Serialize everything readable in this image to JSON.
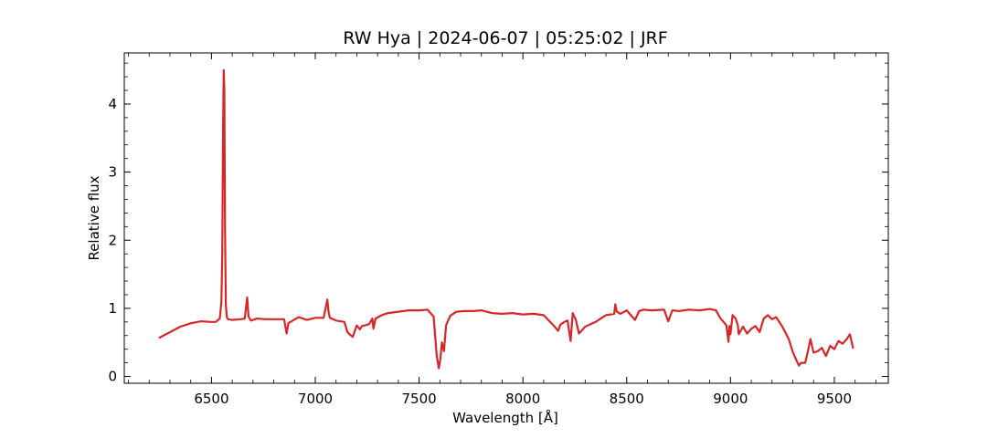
{
  "chart_data": {
    "type": "line",
    "title": "RW Hya | 2024-06-07 | 05:25:02 | JRF",
    "xlabel": "Wavelength [Å]",
    "ylabel": "Relative flux",
    "xlim": [
      6080,
      9760
    ],
    "ylim": [
      -0.1,
      4.75
    ],
    "x_ticks": [
      6500,
      7000,
      7500,
      8000,
      8500,
      9000,
      9500
    ],
    "x_minor_step": 100,
    "y_ticks": [
      0,
      1,
      2,
      3,
      4
    ],
    "y_minor_step": 0.2,
    "grid": false,
    "line_color": "#d62728",
    "series": [
      {
        "x": [
          6250,
          6300,
          6350,
          6400,
          6450,
          6500,
          6520,
          6540,
          6548,
          6552,
          6556,
          6559,
          6562,
          6565,
          6569,
          6574,
          6580,
          6600,
          6640,
          6660,
          6672,
          6678,
          6690,
          6720,
          6760,
          6800,
          6850,
          6862,
          6870,
          6880,
          6920,
          6960,
          7000,
          7040,
          7058,
          7064,
          7070,
          7100,
          7140,
          7155,
          7165,
          7180,
          7200,
          7215,
          7225,
          7240,
          7260,
          7275,
          7280,
          7290,
          7320,
          7350,
          7400,
          7450,
          7500,
          7540,
          7570,
          7585,
          7595,
          7602,
          7610,
          7620,
          7630,
          7650,
          7680,
          7720,
          7760,
          7800,
          7850,
          7900,
          7950,
          8000,
          8050,
          8100,
          8150,
          8170,
          8180,
          8200,
          8215,
          8230,
          8240,
          8255,
          8270,
          8300,
          8350,
          8400,
          8440,
          8445,
          8452,
          8470,
          8500,
          8540,
          8560,
          8580,
          8620,
          8680,
          8700,
          8720,
          8750,
          8800,
          8850,
          8900,
          8930,
          8950,
          8980,
          8990,
          8995,
          9000,
          9010,
          9025,
          9035,
          9040,
          9060,
          9080,
          9100,
          9120,
          9140,
          9160,
          9180,
          9200,
          9220,
          9250,
          9280,
          9300,
          9320,
          9330,
          9340,
          9360,
          9375,
          9385,
          9400,
          9420,
          9440,
          9460,
          9480,
          9500,
          9520,
          9540,
          9560,
          9575,
          9590
        ],
        "y": [
          0.57,
          0.65,
          0.73,
          0.78,
          0.81,
          0.8,
          0.8,
          0.85,
          1.1,
          1.8,
          3.6,
          4.5,
          4.2,
          2.2,
          1.05,
          0.87,
          0.84,
          0.83,
          0.84,
          0.85,
          1.16,
          0.88,
          0.82,
          0.85,
          0.84,
          0.84,
          0.84,
          0.63,
          0.78,
          0.8,
          0.87,
          0.83,
          0.86,
          0.86,
          1.13,
          0.95,
          0.86,
          0.82,
          0.8,
          0.65,
          0.62,
          0.58,
          0.75,
          0.69,
          0.74,
          0.75,
          0.77,
          0.85,
          0.7,
          0.85,
          0.9,
          0.93,
          0.95,
          0.97,
          0.97,
          0.98,
          0.88,
          0.3,
          0.12,
          0.25,
          0.5,
          0.37,
          0.75,
          0.89,
          0.95,
          0.96,
          0.96,
          0.97,
          0.93,
          0.92,
          0.93,
          0.91,
          0.92,
          0.9,
          0.74,
          0.67,
          0.76,
          0.8,
          0.82,
          0.52,
          0.93,
          0.83,
          0.63,
          0.73,
          0.8,
          0.9,
          0.92,
          1.06,
          0.95,
          0.92,
          0.97,
          0.83,
          0.96,
          0.98,
          0.97,
          0.98,
          0.81,
          0.97,
          0.96,
          0.98,
          0.97,
          0.99,
          0.97,
          0.86,
          0.75,
          0.51,
          0.74,
          0.62,
          0.9,
          0.85,
          0.75,
          0.62,
          0.73,
          0.63,
          0.7,
          0.74,
          0.65,
          0.85,
          0.9,
          0.84,
          0.87,
          0.73,
          0.55,
          0.36,
          0.22,
          0.16,
          0.2,
          0.2,
          0.4,
          0.55,
          0.35,
          0.37,
          0.42,
          0.3,
          0.45,
          0.4,
          0.52,
          0.48,
          0.55,
          0.62,
          0.42
        ]
      }
    ]
  }
}
